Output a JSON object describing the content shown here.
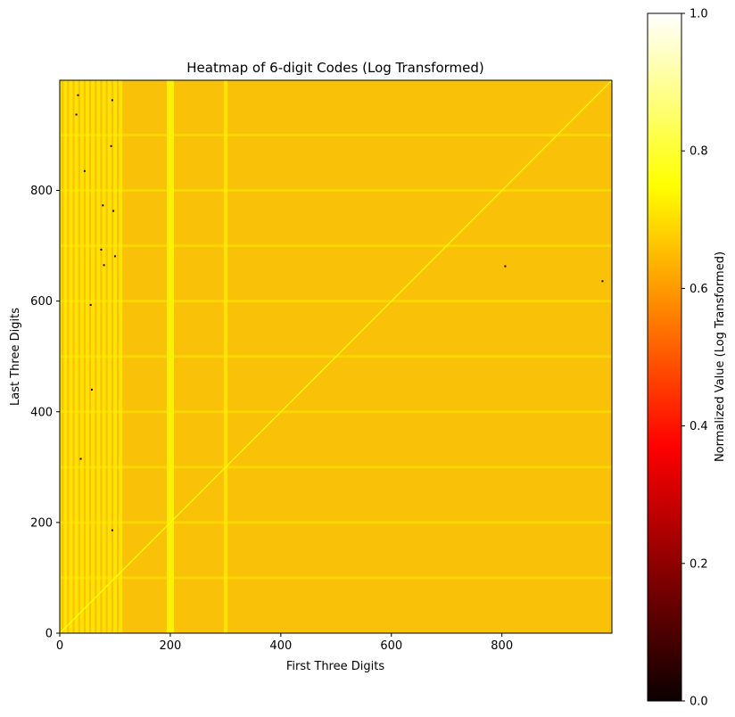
{
  "chart_data": {
    "type": "heatmap",
    "title": "Heatmap of 6-digit Codes (Log Transformed)",
    "xlabel": "First Three Digits",
    "ylabel": "Last Three Digits",
    "xlim": [
      0,
      999
    ],
    "ylim": [
      0,
      999
    ],
    "xticks": [
      0,
      200,
      400,
      600,
      800
    ],
    "yticks": [
      0,
      200,
      400,
      600,
      800
    ],
    "colormap": "hot",
    "colorbar": {
      "label": "Normalized Value (Log Transformed)",
      "range": [
        0.0,
        1.0
      ],
      "ticks": [
        "0.0",
        "0.2",
        "0.4",
        "0.6",
        "0.8",
        "1.0"
      ]
    },
    "summary": {
      "typical_value": 0.68,
      "diagonal_value": 0.75,
      "bright_columns": [
        0,
        10,
        20,
        30,
        40,
        50,
        60,
        70,
        80,
        90,
        100,
        110,
        200,
        300
      ],
      "dark_outlier_points": [
        [
          33,
          972
        ],
        [
          30,
          937
        ],
        [
          95,
          963
        ],
        [
          45,
          835
        ],
        [
          93,
          880
        ],
        [
          78,
          773
        ],
        [
          97,
          763
        ],
        [
          75,
          693
        ],
        [
          80,
          665
        ],
        [
          100,
          681
        ],
        [
          56,
          593
        ],
        [
          58,
          440
        ],
        [
          38,
          315
        ],
        [
          95,
          186
        ],
        [
          806,
          663
        ],
        [
          982,
          636
        ]
      ]
    },
    "colors": {
      "base": "#f9c208",
      "outlier": "#1a0000"
    }
  }
}
